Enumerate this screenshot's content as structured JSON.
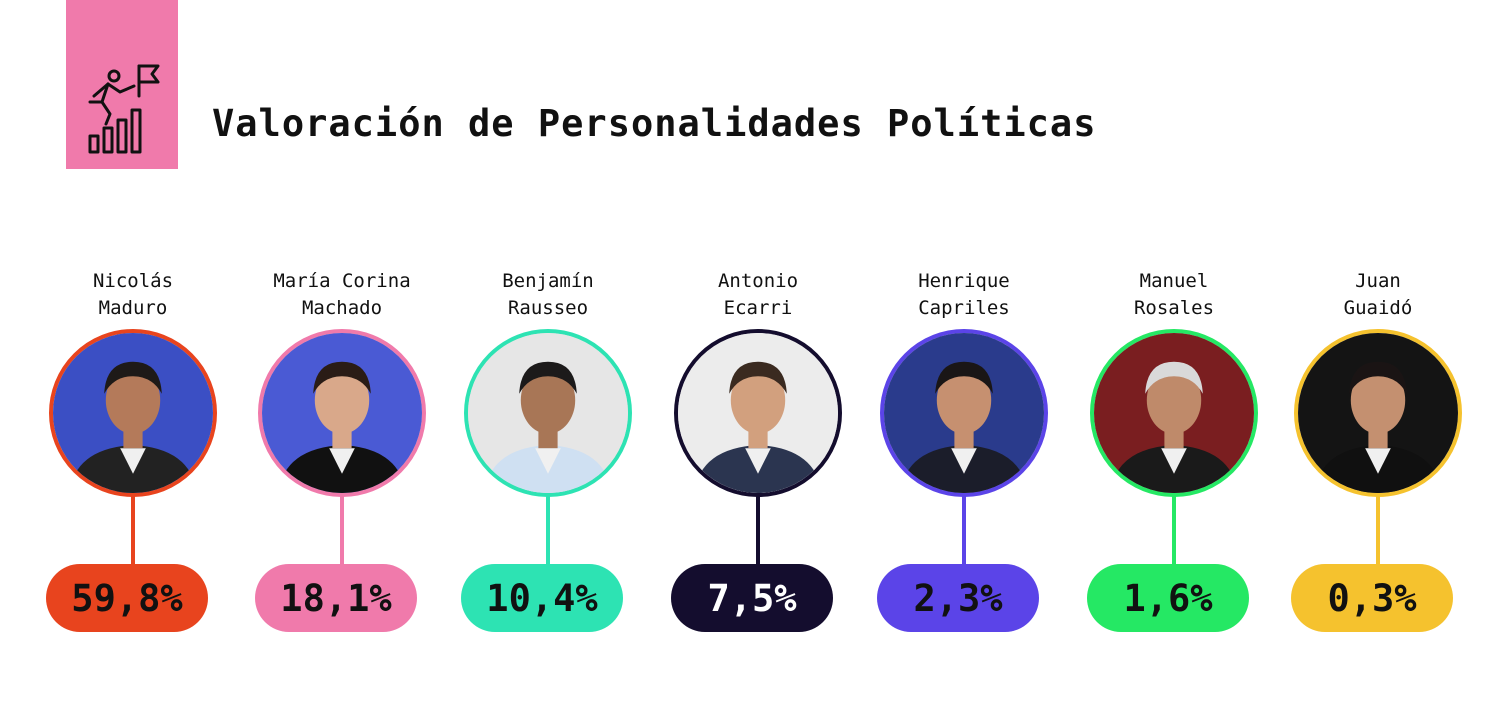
{
  "header": {
    "icon": "climber-flag-bars-icon",
    "title": "Valoración de Personalidades Políticas"
  },
  "chart_data": {
    "type": "bar",
    "title": "Valoración de Personalidades Políticas",
    "categories": [
      "Nicolás Maduro",
      "María Corina Machado",
      "Benjamín Rausseo",
      "Antonio Ecarri",
      "Henrique Capriles",
      "Manuel Rosales",
      "Juan Guaidó"
    ],
    "values": [
      59.8,
      18.1,
      10.4,
      7.5,
      2.3,
      1.6,
      0.3
    ],
    "unit": "%",
    "labels": [
      "59,8%",
      "18,1%",
      "10,4%",
      "7,5%",
      "2,3%",
      "1,6%",
      "0,3%"
    ]
  },
  "people": [
    {
      "line1": "Nicolás",
      "line2": "Maduro",
      "label": "59,8%",
      "color": "#e8441e",
      "text_color": "#111111",
      "photo_bg": "#3b4fc4",
      "skin": "#b47a5a",
      "hair": "#1e1a18",
      "suit": "#222222"
    },
    {
      "line1": "María Corina",
      "line2": "Machado",
      "label": "18,1%",
      "color": "#f07aab",
      "text_color": "#111111",
      "photo_bg": "#4a5ad4",
      "skin": "#d9a88a",
      "hair": "#2a1c16",
      "suit": "#111111"
    },
    {
      "line1": "Benjamín",
      "line2": "Rausseo",
      "label": "10,4%",
      "color": "#2de3b3",
      "text_color": "#111111",
      "photo_bg": "#e6e6e6",
      "skin": "#a87656",
      "hair": "#1c1a1a",
      "suit": "#cfe0f2"
    },
    {
      "line1": "Antonio",
      "line2": "Ecarri",
      "label": "7,5%",
      "color": "#140d2e",
      "text_color": "#ffffff",
      "photo_bg": "#ececec",
      "skin": "#d2a07e",
      "hair": "#3a2a20",
      "suit": "#2b3550"
    },
    {
      "line1": "Henrique",
      "line2": "Capriles",
      "label": "2,3%",
      "color": "#5b44e8",
      "text_color": "#111111",
      "photo_bg": "#2a3b8c",
      "skin": "#c69070",
      "hair": "#1a1616",
      "suit": "#1b1d2a"
    },
    {
      "line1": "Manuel",
      "line2": "Rosales",
      "label": "1,6%",
      "color": "#25e864",
      "text_color": "#111111",
      "photo_bg": "#7a1e20",
      "skin": "#bf8a6a",
      "hair": "#d9d9d9",
      "suit": "#1a1a1a"
    },
    {
      "line1": "Juan",
      "line2": "Guaidó",
      "label": "0,3%",
      "color": "#f5c22e",
      "text_color": "#111111",
      "photo_bg": "#141414",
      "skin": "#c49070",
      "hair": "#1a1414",
      "suit": "#101010"
    }
  ]
}
